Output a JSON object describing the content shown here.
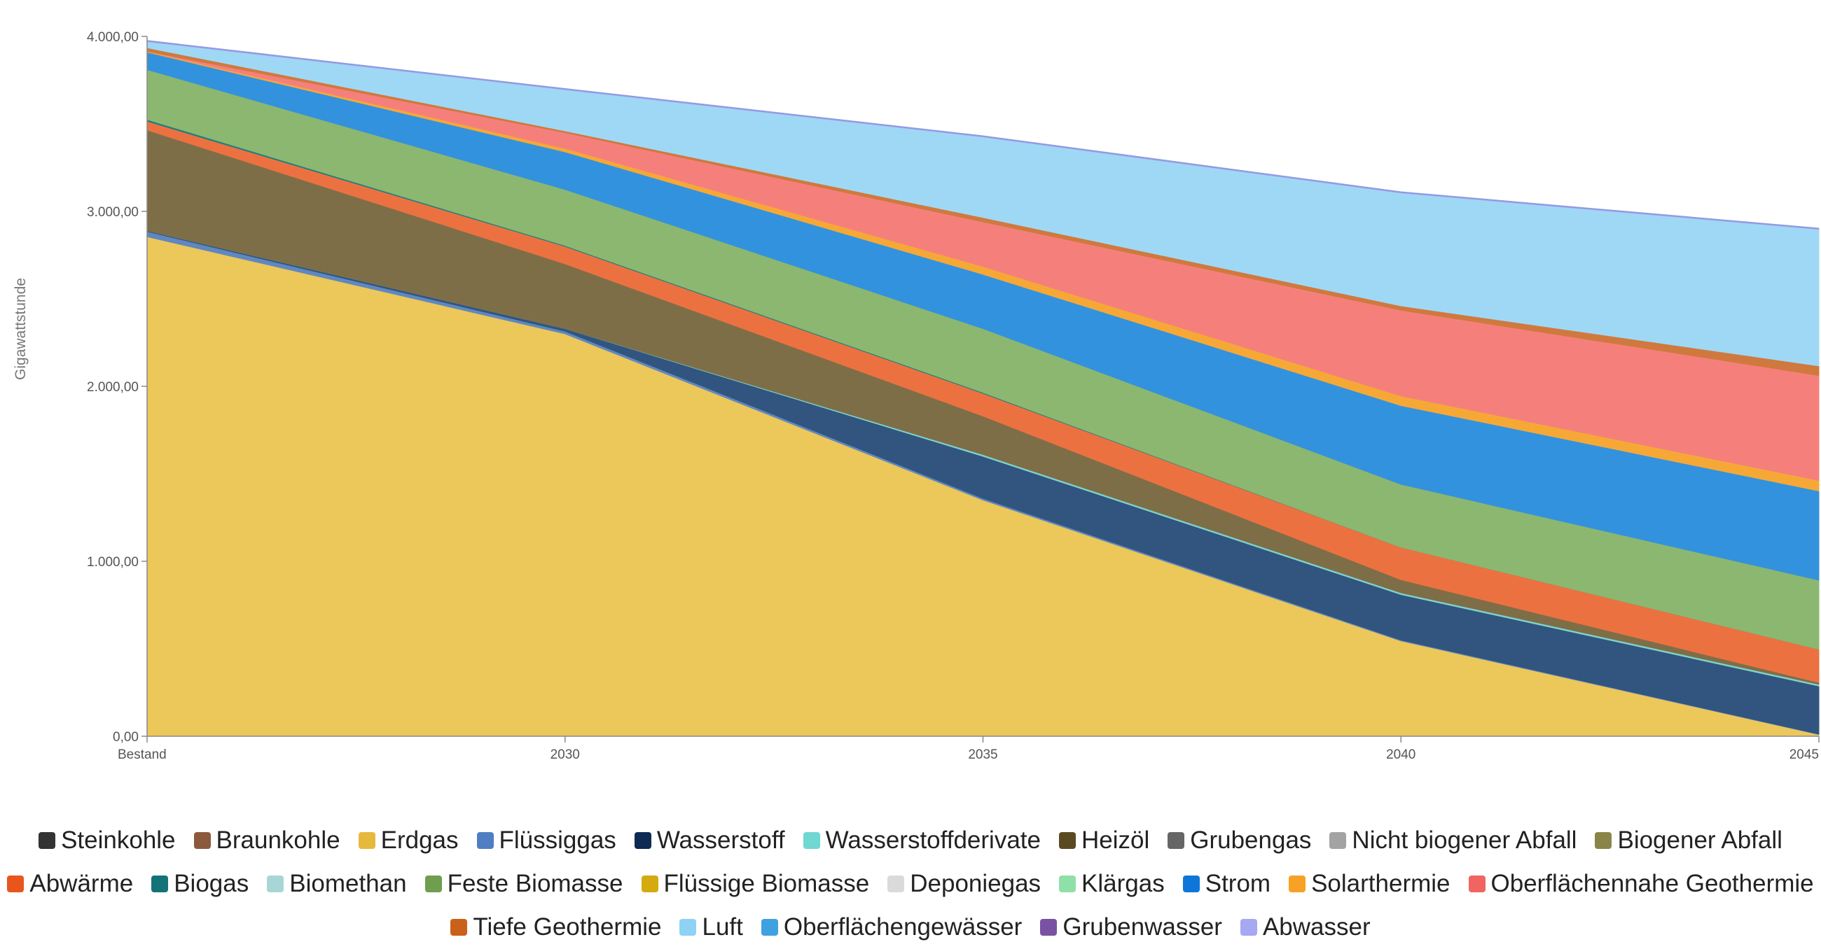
{
  "chart_data": {
    "type": "area",
    "stacked": true,
    "title": "",
    "ylabel": "Gigawattstunde",
    "ylim": [
      0,
      4000
    ],
    "yticks": [
      0,
      1000,
      2000,
      3000,
      4000
    ],
    "ytick_labels": [
      "0,00",
      "1.000,00",
      "2.000,00",
      "3.000,00",
      "4.000,00"
    ],
    "categories": [
      "Bestand",
      "2030",
      "2035",
      "2040",
      "2045"
    ],
    "legend_position": "bottom",
    "grid": false,
    "series": [
      {
        "name": "Erdgas",
        "color": "#ECC75A",
        "values": [
          2855,
          2300,
          1350,
          545,
          10
        ]
      },
      {
        "name": "Flüssiggas",
        "color": "#5F88C0",
        "values": [
          30,
          15,
          10,
          5,
          2
        ]
      },
      {
        "name": "Wasserstoff",
        "color": "#31557F",
        "values": [
          5,
          15,
          240,
          260,
          275
        ]
      },
      {
        "name": "Wasserstoffderivate",
        "color": "#7ED3CC",
        "values": [
          0,
          0,
          10,
          10,
          10
        ]
      },
      {
        "name": "Heizöl",
        "color": "#7E6E47",
        "values": [
          575,
          370,
          220,
          75,
          10
        ]
      },
      {
        "name": "Abwärme",
        "color": "#EC7141",
        "values": [
          50,
          100,
          130,
          185,
          190
        ]
      },
      {
        "name": "Biogas",
        "color": "#1F7F7F",
        "values": [
          10,
          5,
          5,
          0,
          0
        ]
      },
      {
        "name": "Feste Biomasse",
        "color": "#8CB770",
        "values": [
          285,
          320,
          365,
          360,
          395
        ]
      },
      {
        "name": "Strom",
        "color": "#3392DD",
        "values": [
          100,
          215,
          310,
          450,
          510
        ]
      },
      {
        "name": "Solarthermie",
        "color": "#F6A837",
        "values": [
          5,
          20,
          45,
          55,
          60
        ]
      },
      {
        "name": "Oberflächennahe Geothermie",
        "color": "#F5807B",
        "values": [
          0,
          90,
          255,
          490,
          600
        ]
      },
      {
        "name": "Tiefe Geothermie",
        "color": "#D0793E",
        "values": [
          20,
          10,
          25,
          25,
          55
        ]
      },
      {
        "name": "Luft",
        "color": "#9FD8F5",
        "values": [
          35,
          235,
          460,
          645,
          780
        ]
      },
      {
        "name": "Abwasser",
        "color": "#A5A8EE",
        "values": [
          5,
          5,
          5,
          5,
          5
        ]
      }
    ]
  },
  "legend": {
    "rows": [
      [
        {
          "label": "Steinkohle",
          "color": "#333333"
        },
        {
          "label": "Braunkohle",
          "color": "#8B5A3C"
        },
        {
          "label": "Erdgas",
          "color": "#E6B93C"
        },
        {
          "label": "Flüssiggas",
          "color": "#4F7EC2"
        },
        {
          "label": "Wasserstoff",
          "color": "#0E2A52"
        },
        {
          "label": "Wasserstoffderivate",
          "color": "#6ED8D1"
        },
        {
          "label": "Heizöl",
          "color": "#5A4A22"
        },
        {
          "label": "Grubengas",
          "color": "#666666"
        },
        {
          "label": "Nicht biogener Abfall",
          "color": "#A3A3A3"
        },
        {
          "label": "Biogener Abfall",
          "color": "#8A8448"
        }
      ],
      [
        {
          "label": "Abwärme",
          "color": "#E8561D"
        },
        {
          "label": "Biogas",
          "color": "#137378"
        },
        {
          "label": "Biomethan",
          "color": "#A8D6D6"
        },
        {
          "label": "Feste Biomasse",
          "color": "#6E9E4E"
        },
        {
          "label": "Flüssige Biomasse",
          "color": "#D4AA0E"
        },
        {
          "label": "Deponiegas",
          "color": "#DADADA"
        },
        {
          "label": "Klärgas",
          "color": "#8FE0A8"
        },
        {
          "label": "Strom",
          "color": "#0E76D8"
        },
        {
          "label": "Solarthermie",
          "color": "#F7A224"
        },
        {
          "label": "Oberflächennahe Geothermie",
          "color": "#F06562"
        }
      ],
      [
        {
          "label": "Tiefe Geothermie",
          "color": "#C9611B"
        },
        {
          "label": "Luft",
          "color": "#8ED2F5"
        },
        {
          "label": "Oberflächengewässer",
          "color": "#3FA2E0"
        },
        {
          "label": "Grubenwasser",
          "color": "#7A52A3"
        },
        {
          "label": "Abwasser",
          "color": "#A6A8F2"
        }
      ]
    ]
  }
}
